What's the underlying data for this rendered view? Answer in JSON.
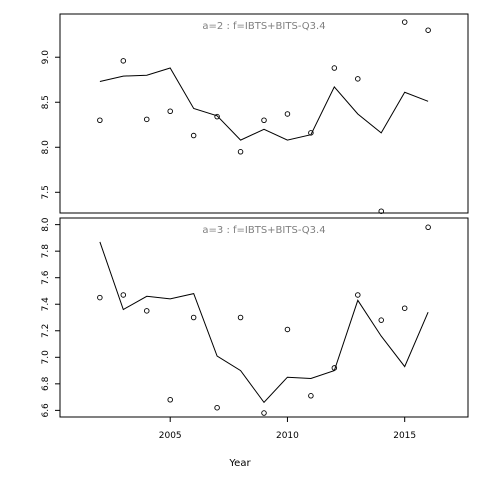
{
  "chart_data": [
    {
      "type": "scatter",
      "title": "a=2  :  f=IBTS+BITS-Q3.4",
      "xlim": [
        2000.3,
        2017.7
      ],
      "ylim": [
        7.27,
        9.48
      ],
      "yticks": [
        7.5,
        8.0,
        8.5,
        9.0
      ],
      "ytick_labels": [
        "7.5",
        "8.0",
        "8.5",
        "9.0"
      ],
      "grid": false,
      "x": [
        2002,
        2003,
        2004,
        2005,
        2006,
        2007,
        2008,
        2009,
        2010,
        2011,
        2012,
        2013,
        2014,
        2015,
        2016
      ],
      "series": [
        {
          "kind": "points",
          "values": [
            8.3,
            8.96,
            8.31,
            8.4,
            8.13,
            8.34,
            7.95,
            8.3,
            8.37,
            8.16,
            8.88,
            8.76,
            7.29,
            9.39,
            9.3
          ]
        },
        {
          "kind": "line",
          "values": [
            8.73,
            8.79,
            8.8,
            8.88,
            8.43,
            8.35,
            8.08,
            8.2,
            8.08,
            8.14,
            8.67,
            8.37,
            8.16,
            8.61,
            8.51
          ]
        }
      ]
    },
    {
      "type": "scatter",
      "title": "a=3  :  f=IBTS+BITS-Q3.4",
      "xlim": [
        2000.3,
        2017.7
      ],
      "ylim": [
        6.55,
        8.05
      ],
      "yticks": [
        6.6,
        6.8,
        7.0,
        7.2,
        7.4,
        7.6,
        7.8,
        8.0
      ],
      "ytick_labels": [
        "6.6",
        "6.8",
        "7.0",
        "7.2",
        "7.4",
        "7.6",
        "7.8",
        "8.0"
      ],
      "xticks": [
        2005,
        2010,
        2015
      ],
      "xtick_labels": [
        "2005",
        "2010",
        "2015"
      ],
      "xlabel": "Year",
      "grid": false,
      "x": [
        2002,
        2003,
        2004,
        2005,
        2006,
        2007,
        2008,
        2009,
        2010,
        2011,
        2012,
        2013,
        2014,
        2015,
        2016
      ],
      "series": [
        {
          "kind": "points",
          "values": [
            7.45,
            7.47,
            7.35,
            6.68,
            7.3,
            6.62,
            7.3,
            6.58,
            7.21,
            6.71,
            6.92,
            7.47,
            7.28,
            7.37,
            7.98
          ]
        },
        {
          "kind": "line",
          "values": [
            7.87,
            7.36,
            7.46,
            7.44,
            7.48,
            7.01,
            6.9,
            6.66,
            6.85,
            6.84,
            6.9,
            7.43,
            7.16,
            6.93,
            7.34
          ]
        }
      ]
    }
  ]
}
